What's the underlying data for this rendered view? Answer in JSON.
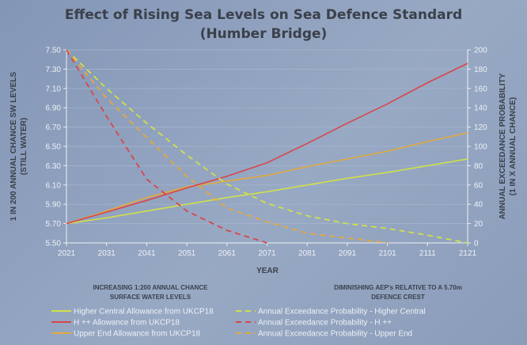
{
  "chart_data": {
    "type": "line",
    "title": "Effect of Rising Sea Levels on Sea Defence Standard",
    "subtitle": "(Humber Bridge)",
    "xlabel": "YEAR",
    "ylabel": "1 IN 200 ANNUAL CHANCE SW LEVELS",
    "ylabel2": "(STILL WATER)",
    "y2label": "ANNUAL EXCEEDANCE PROBABILITY",
    "y2label2": "(1 IN X ANNUAL CHANCE)",
    "x": [
      2021,
      2031,
      2041,
      2051,
      2061,
      2071,
      2081,
      2091,
      2101,
      2111,
      2121
    ],
    "x_ticks": [
      "2021",
      "2031",
      "2041",
      "2051",
      "2061",
      "2071",
      "2081",
      "2091",
      "2101",
      "2111",
      "2121"
    ],
    "ylim": [
      5.5,
      7.5
    ],
    "y_ticks": [
      "5.50",
      "5.70",
      "5.90",
      "6.10",
      "6.30",
      "6.50",
      "6.70",
      "6.90",
      "7.10",
      "7.30",
      "7.50"
    ],
    "y2lim": [
      0,
      200
    ],
    "y2_ticks": [
      "0",
      "20",
      "40",
      "60",
      "80",
      "100",
      "120",
      "140",
      "160",
      "180",
      "200"
    ],
    "grid": true,
    "legend_groups": [
      {
        "heading": "INCREASING 1:200 ANNUAL CHANCE",
        "heading2": "SURFACE WATER LEVELS",
        "placement": "bottom-left"
      },
      {
        "heading": "DIMINISHING AEP's RELATIVE TO A 5.70m",
        "heading2": "DEFENCE CREST",
        "placement": "bottom-right"
      }
    ],
    "series": [
      {
        "name": "Higher Central Allowance from UKCP18",
        "axis": "left",
        "style": "solid",
        "color": "#cfe04c",
        "values": [
          5.7,
          5.76,
          5.83,
          5.9,
          5.97,
          6.03,
          6.1,
          6.17,
          6.23,
          6.3,
          6.37
        ]
      },
      {
        "name": "H ++ Allowance from UKCP18",
        "axis": "left",
        "style": "solid",
        "color": "#d8464b",
        "values": [
          5.7,
          5.82,
          5.94,
          6.07,
          6.19,
          6.33,
          6.53,
          6.74,
          6.94,
          7.16,
          7.36
        ]
      },
      {
        "name": "Upper End Allowance from UKCP18",
        "axis": "left",
        "style": "solid",
        "color": "#e2a93e",
        "values": [
          5.7,
          5.83,
          5.97,
          6.08,
          6.14,
          6.2,
          6.29,
          6.37,
          6.45,
          6.55,
          6.64
        ]
      },
      {
        "name": "Annual Exceedance Probability - Higher Central",
        "axis": "right",
        "style": "dashed",
        "color": "#cfe04c",
        "values": [
          200,
          160,
          124,
          91,
          61,
          41,
          28,
          20,
          15,
          8,
          0
        ]
      },
      {
        "name": "Annual Exceedance Probability - H ++",
        "axis": "right",
        "style": "dashed",
        "color": "#d8464b",
        "values": [
          200,
          131,
          66,
          33,
          13,
          0,
          null,
          null,
          null,
          null,
          null
        ]
      },
      {
        "name": "Annual Exceedance Probability - Upper End",
        "axis": "right",
        "style": "dashed",
        "color": "#e2a93e",
        "values": [
          200,
          150,
          109,
          69,
          36,
          22,
          10,
          5,
          0,
          null,
          null
        ]
      }
    ]
  }
}
